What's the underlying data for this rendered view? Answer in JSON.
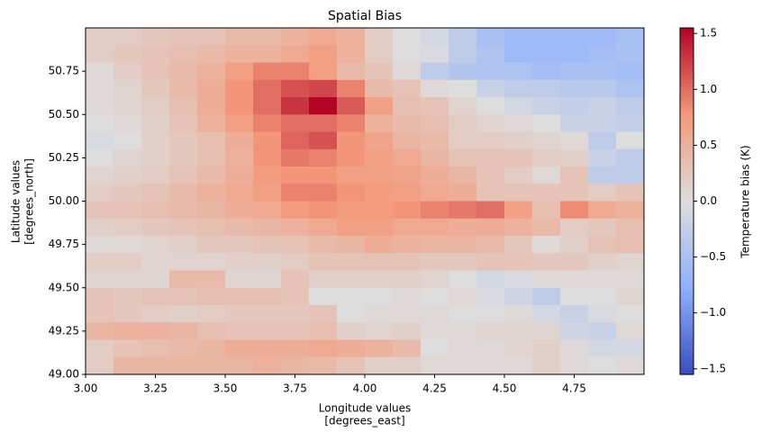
{
  "chart_data": {
    "type": "heatmap",
    "title": "Spatial Bias",
    "x_label": [
      "Longitude values",
      "[degrees_east]"
    ],
    "y_label": [
      "Latitude values",
      "[degrees_north]"
    ],
    "colorbar_label": "Temperature bias (K)",
    "x": [
      3.05,
      3.15,
      3.25,
      3.35,
      3.45,
      3.55,
      3.65,
      3.75,
      3.85,
      3.95,
      4.05,
      4.15,
      4.25,
      4.35,
      4.45,
      4.55,
      4.65,
      4.75,
      4.85,
      4.95
    ],
    "y": [
      50.95,
      50.85,
      50.75,
      50.65,
      50.55,
      50.45,
      50.35,
      50.25,
      50.15,
      50.05,
      49.95,
      49.85,
      49.75,
      49.65,
      49.55,
      49.45,
      49.35,
      49.25,
      49.15,
      49.05
    ],
    "z": [
      [
        0.2,
        0.2,
        0.25,
        0.3,
        0.3,
        0.4,
        0.4,
        0.5,
        0.6,
        0.5,
        0.2,
        0.0,
        -0.1,
        -0.3,
        -0.5,
        -0.6,
        -0.6,
        -0.6,
        -0.6,
        -0.5
      ],
      [
        0.2,
        0.25,
        0.3,
        0.35,
        0.4,
        0.5,
        0.5,
        0.6,
        0.7,
        0.5,
        0.2,
        0.0,
        -0.05,
        -0.3,
        -0.45,
        -0.6,
        -0.6,
        -0.6,
        -0.55,
        -0.5
      ],
      [
        0.05,
        0.2,
        0.3,
        0.4,
        0.5,
        0.7,
        0.9,
        0.9,
        0.7,
        0.4,
        0.3,
        0.05,
        -0.3,
        -0.4,
        -0.45,
        -0.45,
        -0.55,
        -0.5,
        -0.5,
        -0.55
      ],
      [
        0.05,
        0.1,
        0.25,
        0.4,
        0.55,
        0.8,
        1.0,
        1.15,
        1.2,
        0.9,
        0.4,
        0.3,
        0.05,
        0.0,
        -0.2,
        -0.3,
        -0.3,
        -0.35,
        -0.35,
        -0.45
      ],
      [
        0.05,
        0.1,
        0.2,
        0.35,
        0.55,
        0.8,
        1.0,
        1.3,
        1.55,
        1.1,
        0.7,
        0.35,
        0.3,
        0.1,
        0.0,
        -0.1,
        -0.2,
        -0.25,
        -0.2,
        -0.3
      ],
      [
        0.0,
        0.05,
        0.15,
        0.3,
        0.5,
        0.7,
        0.9,
        1.0,
        1.0,
        0.9,
        0.5,
        0.4,
        0.35,
        0.2,
        0.1,
        0.05,
        0.0,
        -0.2,
        -0.2,
        -0.25
      ],
      [
        -0.05,
        0.0,
        0.15,
        0.25,
        0.35,
        0.55,
        0.8,
        1.05,
        1.15,
        0.8,
        0.65,
        0.45,
        0.4,
        0.2,
        0.2,
        0.15,
        0.1,
        0.05,
        -0.3,
        0.0
      ],
      [
        0.0,
        0.1,
        0.15,
        0.25,
        0.35,
        0.5,
        0.8,
        0.95,
        0.9,
        0.8,
        0.7,
        0.6,
        0.45,
        0.3,
        0.3,
        0.3,
        0.2,
        0.15,
        -0.2,
        -0.3
      ],
      [
        0.1,
        0.15,
        0.2,
        0.3,
        0.4,
        0.55,
        0.75,
        0.8,
        0.8,
        0.7,
        0.7,
        0.65,
        0.55,
        0.45,
        0.3,
        0.2,
        0.05,
        0.3,
        -0.3,
        -0.3
      ],
      [
        0.2,
        0.25,
        0.3,
        0.4,
        0.5,
        0.6,
        0.7,
        0.9,
        0.9,
        0.8,
        0.75,
        0.7,
        0.6,
        0.55,
        0.3,
        0.3,
        0.3,
        0.3,
        0.2,
        0.3
      ],
      [
        0.3,
        0.3,
        0.35,
        0.4,
        0.45,
        0.55,
        0.6,
        0.75,
        0.8,
        0.75,
        0.75,
        0.8,
        0.9,
        0.95,
        1.0,
        0.7,
        0.35,
        0.85,
        0.6,
        0.5
      ],
      [
        0.15,
        0.2,
        0.25,
        0.3,
        0.35,
        0.4,
        0.45,
        0.5,
        0.6,
        0.7,
        0.7,
        0.6,
        0.6,
        0.55,
        0.55,
        0.5,
        0.4,
        0.2,
        0.25,
        0.35
      ],
      [
        0.05,
        0.05,
        0.1,
        0.15,
        0.25,
        0.25,
        0.3,
        0.3,
        0.4,
        0.45,
        0.55,
        0.5,
        0.45,
        0.45,
        0.4,
        0.25,
        0.05,
        0.15,
        0.3,
        0.35
      ],
      [
        0.2,
        0.2,
        0.1,
        0.1,
        0.1,
        0.15,
        0.15,
        0.2,
        0.3,
        0.3,
        0.3,
        0.3,
        0.25,
        0.25,
        0.3,
        0.3,
        0.25,
        0.25,
        0.15,
        0.1
      ],
      [
        0.1,
        0.1,
        0.1,
        0.4,
        0.4,
        0.1,
        0.1,
        0.3,
        0.15,
        0.15,
        0.15,
        0.15,
        0.1,
        0.0,
        -0.1,
        -0.05,
        0.05,
        0.05,
        0.05,
        0.05
      ],
      [
        0.3,
        0.25,
        0.3,
        0.3,
        0.35,
        0.35,
        0.35,
        0.3,
        0.0,
        0.0,
        0.0,
        0.05,
        0.0,
        0.05,
        -0.05,
        -0.15,
        -0.3,
        0.0,
        0.0,
        0.1
      ],
      [
        0.3,
        0.25,
        0.2,
        0.15,
        0.2,
        0.25,
        0.25,
        0.25,
        0.3,
        0.0,
        0.05,
        0.05,
        0.05,
        0.0,
        0.0,
        0.05,
        -0.1,
        -0.2,
        -0.05,
        0.0
      ],
      [
        0.45,
        0.5,
        0.5,
        0.45,
        0.35,
        0.3,
        0.3,
        0.3,
        0.35,
        0.15,
        0.1,
        0.15,
        0.05,
        0.05,
        0.1,
        0.1,
        0.1,
        -0.15,
        -0.2,
        0.05
      ],
      [
        0.2,
        0.3,
        0.35,
        0.4,
        0.45,
        0.55,
        0.55,
        0.55,
        0.6,
        0.55,
        0.5,
        0.4,
        0.0,
        0.05,
        0.05,
        0.1,
        0.15,
        0.05,
        -0.1,
        -0.1
      ],
      [
        0.2,
        0.45,
        0.45,
        0.45,
        0.45,
        0.45,
        0.5,
        0.45,
        0.4,
        0.3,
        0.15,
        0.15,
        0.05,
        0.05,
        0.05,
        0.05,
        0.15,
        0.05,
        0.0,
        0.05
      ]
    ],
    "xlim": [
      3,
      5
    ],
    "ylim": [
      49,
      51
    ],
    "xticks": [
      {
        "value": 3,
        "label": "3.00"
      },
      {
        "value": 3.25,
        "label": "3.25"
      },
      {
        "value": 3.5,
        "label": "3.50"
      },
      {
        "value": 3.75,
        "label": "3.75"
      },
      {
        "value": 4,
        "label": "4.00"
      },
      {
        "value": 4.25,
        "label": "4.25"
      },
      {
        "value": 4.5,
        "label": "4.50"
      },
      {
        "value": 4.75,
        "label": "4.75"
      }
    ],
    "yticks": [
      {
        "value": 49,
        "label": "49.00"
      },
      {
        "value": 49.25,
        "label": "49.25"
      },
      {
        "value": 49.5,
        "label": "49.50"
      },
      {
        "value": 49.75,
        "label": "49.75"
      },
      {
        "value": 50,
        "label": "50.00"
      },
      {
        "value": 50.25,
        "label": "50.25"
      },
      {
        "value": 50.5,
        "label": "50.50"
      },
      {
        "value": 50.75,
        "label": "50.75"
      }
    ],
    "clim": [
      -1.55,
      1.55
    ],
    "cticks": [
      {
        "value": -1.5,
        "label": "−1.5"
      },
      {
        "value": -1,
        "label": "−1.0"
      },
      {
        "value": -0.5,
        "label": "−0.5"
      },
      {
        "value": 0,
        "label": "0.0"
      },
      0.5,
      {
        "value": 1,
        "label": "1.0"
      },
      1.5
    ],
    "colormap": [
      "#3b4cc0",
      "#8db0fe",
      "#dddddd",
      "#f49a7b",
      "#b40426"
    ]
  }
}
